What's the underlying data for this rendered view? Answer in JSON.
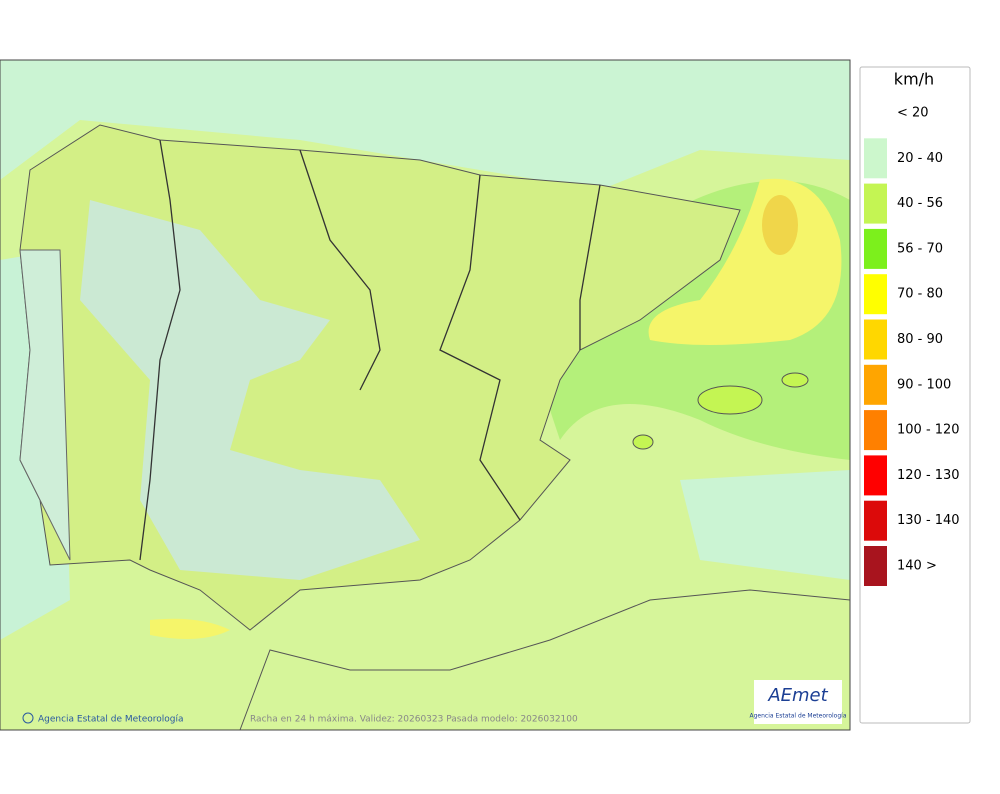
{
  "legend": {
    "title": "km/h",
    "items": [
      {
        "label": "< 20",
        "color": "#ffffff"
      },
      {
        "label": "20 - 40",
        "color": "#ccf7cc"
      },
      {
        "label": "40 - 56",
        "color": "#c4f553"
      },
      {
        "label": "56 - 70",
        "color": "#7cf01c"
      },
      {
        "label": "70 - 80",
        "color": "#ffff00"
      },
      {
        "label": "80 - 90",
        "color": "#ffd700"
      },
      {
        "label": "90 - 100",
        "color": "#ffa500"
      },
      {
        "label": "100 - 120",
        "color": "#ff8000"
      },
      {
        "label": "120 - 130",
        "color": "#ff0000"
      },
      {
        "label": "130 - 140",
        "color": "#dc0a0a"
      },
      {
        "label": "140 >",
        "color": "#a8141e"
      }
    ]
  },
  "footer": {
    "credit": "Agencia Estatal de Meteorología",
    "caption": "Racha en 24 h máxima. Validez: 20260323 Pasada modelo: 2026032100"
  },
  "logo": {
    "name": "AEmet",
    "subtitle": "Agencia Estatal de Meteorología"
  }
}
